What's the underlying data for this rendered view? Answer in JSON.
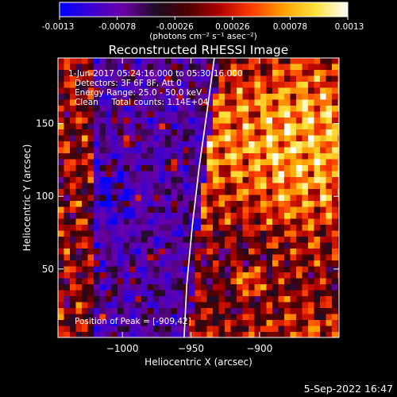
{
  "chart_data": {
    "type": "heatmap",
    "title": "Reconstructed RHESSI Image",
    "colorbar": {
      "min": -0.0013,
      "max": 0.0013,
      "ticks": [
        "-0.0013",
        "-0.00078",
        "-0.00026",
        "0.00026",
        "0.00078",
        "0.0013"
      ],
      "unit_label": "(photons cm⁻² s⁻¹ asec⁻²)",
      "colors": [
        "#0000ff",
        "#3b00d0",
        "#6a00a6",
        "#1e0d24",
        "#4a0000",
        "#b00000",
        "#ff3c00",
        "#ffa000",
        "#ffe23c",
        "#ffffff"
      ]
    },
    "xlabel": "Heliocentric X (arcsec)",
    "ylabel": "Heliocentric Y (arcsec)",
    "xlim": [
      -1047,
      -942.5
    ],
    "xlim_note": "",
    "x_range": [
      -1047,
      -842
    ],
    "y_range": [
      3,
      195
    ],
    "x_ticks": [
      -1000,
      -950,
      -900
    ],
    "y_ticks": [
      50,
      100,
      150
    ],
    "limb_x": [
      [
        -955,
        3
      ],
      [
        -953,
        40
      ],
      [
        -949,
        80
      ],
      [
        -944,
        120
      ],
      [
        -938,
        160
      ],
      [
        -933,
        195
      ]
    ],
    "peak": [
      -909,
      42
    ]
  },
  "info_lines": [
    "1-Jun-2017 05:24:16.000 to 05:30:16.000",
    "Detectors: 3F 6F 8F, Att 0",
    "Energy Range: 25.0 - 50.0 keV",
    "Clean     Total counts: 1.14E+04"
  ],
  "peak_text": "Position of Peak = [-909,42]",
  "timestamp": "5-Sep-2022 16:47"
}
